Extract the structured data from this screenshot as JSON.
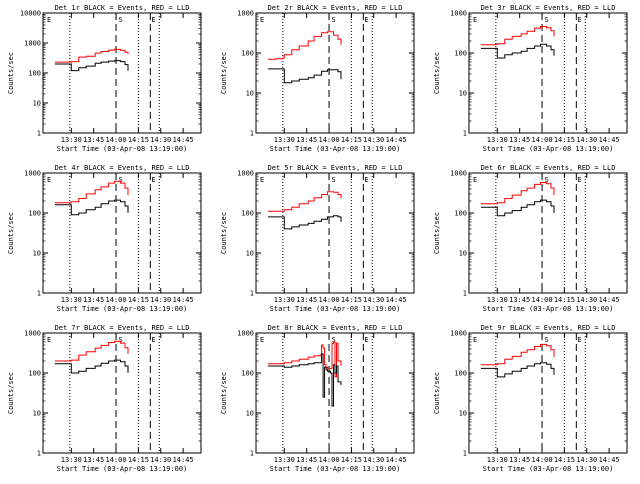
{
  "chart_data": {
    "type": "line",
    "y_scale": "log",
    "ylim": [
      1,
      10000
    ],
    "x_tick_labels": [
      "13:30",
      "13:45",
      "14:00",
      "14:15",
      "14:30",
      "14:45"
    ],
    "ylabel": "Counts/sec",
    "xlabel": "Start Time (03-Apr-08 13:19:00)",
    "colors": {
      "events": "#000000",
      "lld": "#ff0000"
    },
    "panels": [
      {
        "title": "Det 1r BLACK = Events, RED = LLD",
        "y_tick_labels": [
          "1",
          "10",
          "100",
          "1000",
          "10000"
        ],
        "markers": [
          "E",
          "S",
          "E"
        ],
        "series": [
          {
            "name": "RED",
            "x": [
              0,
              5,
              10,
              11,
              16,
              21,
              27,
              31,
              36,
              40,
              44,
              47,
              49
            ],
            "y": [
              230,
              230,
              230,
              240,
              340,
              360,
              460,
              520,
              580,
              610,
              570,
              490,
              430
            ]
          },
          {
            "name": "BLACK",
            "x": [
              0,
              5,
              10,
              11,
              16,
              21,
              27,
              31,
              36,
              40,
              44,
              47,
              49
            ],
            "y": [
              200,
              200,
              200,
              120,
              150,
              170,
              210,
              230,
              250,
              260,
              240,
              190,
              120
            ]
          }
        ]
      },
      {
        "title": "Det 2r BLACK = Events, RED = LLD",
        "y_tick_labels": [
          "1",
          "10",
          "100",
          "1000"
        ],
        "markers": [
          "E",
          "S",
          "E"
        ],
        "series": [
          {
            "name": "RED",
            "x": [
              0,
              5,
              10,
              11,
              16,
              21,
              27,
              31,
              36,
              40,
              44,
              47,
              49
            ],
            "y": [
              70,
              72,
              75,
              90,
              120,
              150,
              200,
              260,
              320,
              340,
              280,
              220,
              160
            ]
          },
          {
            "name": "BLACK",
            "x": [
              0,
              5,
              10,
              11,
              16,
              21,
              27,
              31,
              36,
              40,
              44,
              47,
              49
            ],
            "y": [
              40,
              40,
              40,
              18,
              20,
              22,
              24,
              28,
              35,
              38,
              38,
              34,
              22
            ]
          }
        ]
      },
      {
        "title": "Det 3r BLACK = Events, RED = LLD",
        "y_tick_labels": [
          "1",
          "10",
          "100",
          "1000"
        ],
        "markers": [
          "E",
          "S",
          "E"
        ],
        "series": [
          {
            "name": "RED",
            "x": [
              0,
              5,
              10,
              11,
              16,
              21,
              27,
              31,
              36,
              40,
              44,
              47,
              49
            ],
            "y": [
              160,
              160,
              165,
              170,
              220,
              260,
              300,
              350,
              420,
              460,
              430,
              360,
              260
            ]
          },
          {
            "name": "BLACK",
            "x": [
              0,
              5,
              10,
              11,
              16,
              21,
              27,
              31,
              36,
              40,
              44,
              47,
              49
            ],
            "y": [
              130,
              130,
              130,
              75,
              90,
              100,
              110,
              130,
              150,
              165,
              150,
              120,
              85
            ]
          }
        ]
      },
      {
        "title": "Det 4r BLACK = Events, RED = LLD",
        "y_tick_labels": [
          "1",
          "10",
          "100",
          "1000"
        ],
        "markers": [
          "E",
          "S",
          "E"
        ],
        "series": [
          {
            "name": "RED",
            "x": [
              0,
              5,
              10,
              11,
              16,
              21,
              27,
              31,
              36,
              40,
              44,
              47,
              49
            ],
            "y": [
              180,
              180,
              180,
              190,
              230,
              300,
              380,
              450,
              560,
              620,
              560,
              420,
              280
            ]
          },
          {
            "name": "BLACK",
            "x": [
              0,
              5,
              10,
              11,
              16,
              21,
              27,
              31,
              36,
              40,
              44,
              47,
              49
            ],
            "y": [
              160,
              160,
              160,
              90,
              100,
              120,
              140,
              170,
              200,
              210,
              190,
              150,
              100
            ]
          }
        ]
      },
      {
        "title": "Det 5r BLACK = Events, RED = LLD",
        "y_tick_labels": [
          "1",
          "10",
          "100",
          "1000"
        ],
        "markers": [
          "E",
          "S",
          "E"
        ],
        "series": [
          {
            "name": "RED",
            "x": [
              0,
              5,
              10,
              11,
              16,
              21,
              27,
              31,
              36,
              40,
              44,
              47,
              49
            ],
            "y": [
              110,
              110,
              110,
              120,
              140,
              170,
              200,
              240,
              290,
              340,
              330,
              290,
              230
            ]
          },
          {
            "name": "BLACK",
            "x": [
              0,
              5,
              10,
              11,
              16,
              21,
              27,
              31,
              36,
              40,
              44,
              47,
              49
            ],
            "y": [
              80,
              80,
              80,
              40,
              45,
              50,
              55,
              62,
              70,
              80,
              85,
              80,
              60
            ]
          }
        ]
      },
      {
        "title": "Det 6r BLACK = Events, RED = LLD",
        "y_tick_labels": [
          "1",
          "10",
          "100",
          "1000"
        ],
        "markers": [
          "E",
          "S",
          "E"
        ],
        "series": [
          {
            "name": "RED",
            "x": [
              0,
              5,
              10,
              11,
              16,
              21,
              27,
              31,
              36,
              40,
              44,
              47,
              49
            ],
            "y": [
              170,
              170,
              170,
              180,
              230,
              280,
              360,
              420,
              520,
              580,
              540,
              420,
              280
            ]
          },
          {
            "name": "BLACK",
            "x": [
              0,
              5,
              10,
              11,
              16,
              21,
              27,
              31,
              36,
              40,
              44,
              47,
              49
            ],
            "y": [
              140,
              140,
              140,
              85,
              100,
              115,
              140,
              160,
              190,
              210,
              190,
              150,
              100
            ]
          }
        ]
      },
      {
        "title": "Det 7r BLACK = Events, RED = LLD",
        "y_tick_labels": [
          "1",
          "10",
          "100",
          "1000"
        ],
        "markers": [
          "E",
          "S",
          "E"
        ],
        "series": [
          {
            "name": "RED",
            "x": [
              0,
              5,
              10,
              11,
              16,
              21,
              27,
              31,
              36,
              40,
              44,
              47,
              49
            ],
            "y": [
              200,
              200,
              200,
              210,
              280,
              340,
              420,
              490,
              580,
              620,
              560,
              430,
              300
            ]
          },
          {
            "name": "BLACK",
            "x": [
              0,
              5,
              10,
              11,
              16,
              21,
              27,
              31,
              36,
              40,
              44,
              47,
              49
            ],
            "y": [
              170,
              170,
              170,
              100,
              110,
              130,
              150,
              175,
              200,
              210,
              190,
              150,
              100
            ]
          }
        ]
      },
      {
        "title": "Det 8r BLACK = Events, RED = LLD",
        "y_tick_labels": [
          "1",
          "10",
          "100",
          "1000"
        ],
        "markers": [
          "E",
          "S",
          "E"
        ],
        "series": [
          {
            "name": "RED",
            "x": [
              0,
              5,
              10,
              11,
              16,
              21,
              27,
              31,
              35,
              36,
              37,
              38,
              39,
              40,
              42,
              43,
              44,
              45,
              46,
              47,
              49
            ],
            "y": [
              170,
              170,
              170,
              180,
              200,
              220,
              250,
              270,
              280,
              500,
              420,
              160,
              140,
              130,
              130,
              550,
              600,
              80,
              560,
              200,
              150
            ]
          },
          {
            "name": "BLACK",
            "x": [
              0,
              5,
              10,
              11,
              16,
              21,
              27,
              31,
              35,
              36,
              37,
              38,
              39,
              40,
              42,
              43,
              44,
              45,
              46,
              47,
              49
            ],
            "y": [
              150,
              150,
              150,
              140,
              150,
              160,
              170,
              180,
              180,
              300,
              25,
              140,
              120,
              110,
              100,
              15,
              160,
              100,
              150,
              60,
              50
            ]
          }
        ]
      },
      {
        "title": "Det 9r BLACK = Events, RED = LLD",
        "y_tick_labels": [
          "1",
          "10",
          "100",
          "1000"
        ],
        "markers": [
          "E",
          "S",
          "E"
        ],
        "series": [
          {
            "name": "RED",
            "x": [
              0,
              5,
              10,
              11,
              16,
              21,
              27,
              31,
              36,
              40,
              44,
              47,
              49
            ],
            "y": [
              160,
              160,
              160,
              170,
              220,
              260,
              330,
              380,
              460,
              520,
              480,
              380,
              250
            ]
          },
          {
            "name": "BLACK",
            "x": [
              0,
              5,
              10,
              11,
              16,
              21,
              27,
              31,
              36,
              40,
              44,
              47,
              49
            ],
            "y": [
              130,
              130,
              130,
              80,
              95,
              110,
              130,
              150,
              170,
              180,
              165,
              130,
              90
            ]
          }
        ]
      }
    ]
  }
}
